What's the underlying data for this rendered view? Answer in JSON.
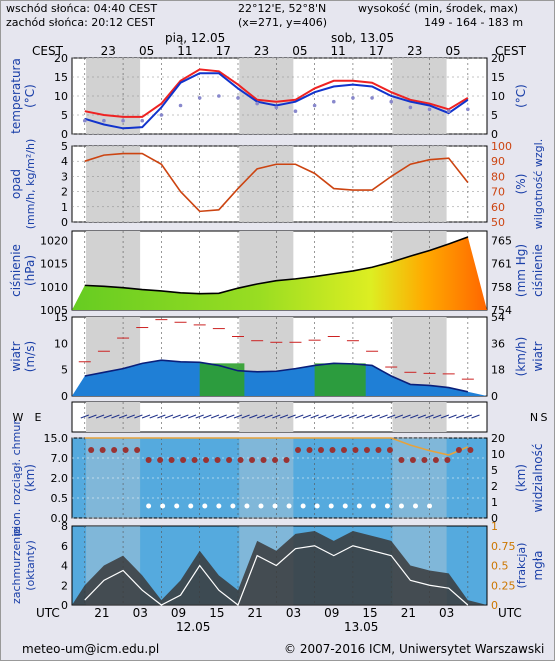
{
  "header": {
    "sunrise": "wschód słońca: 04:40 CEST",
    "sunset": "zachód słońca: 20:12 CEST",
    "coords": "22°12'E, 52°8'N",
    "grid": "(x=271, y=406)",
    "elev_title": "wysokość (min, środek, max)",
    "elev_values": "149 - 164 - 183 m",
    "tz_left": "CEST",
    "tz_right": "CEST",
    "day1_label": "pią, 12.05",
    "day2_label": "sob, 13.05",
    "top_hours": [
      "23",
      "05",
      "11",
      "17",
      "23",
      "05",
      "11",
      "17",
      "23",
      "05"
    ],
    "utc_label": "UTC",
    "utc_label_right": "UTC",
    "bottom_hours": [
      "21",
      "03",
      "09",
      "15",
      "21",
      "03",
      "09",
      "15",
      "21",
      "03"
    ],
    "bottom_date1": "12.05",
    "bottom_date2": "13.05"
  },
  "footer": {
    "email": "meteo-um@icm.edu.pl",
    "copyright": "© 2007-2016 ICM, Uniwersytet Warszawski"
  },
  "colors": {
    "night": "#d2d2d2",
    "day": "#ffffff",
    "temp_max": "#ee2222",
    "temp_mean": "#1133cc",
    "dewpoint": "#8888cc",
    "humidity": "#cc4411",
    "precip": "#cc2222",
    "pressure_line": "#000000",
    "wind_gust": "#cc2222",
    "visibility": "#e6a23c",
    "dots": "#993333",
    "sky": "#55aade"
  },
  "chart_data": [
    {
      "type": "line",
      "title": "",
      "ylabel": "temperatura (°C)",
      "ylabel_right": "(°C)",
      "ylim": [
        0,
        20
      ],
      "yticks": [
        "0",
        "5",
        "10",
        "15",
        "20"
      ],
      "x_hours_utc": [
        18,
        21,
        24,
        27,
        30,
        33,
        36,
        39,
        42,
        45,
        48,
        51,
        54,
        57,
        60,
        63,
        66,
        69,
        72,
        75,
        78
      ],
      "series": [
        {
          "values": [
            6,
            5,
            4.5,
            4.5,
            8,
            14,
            17,
            16.5,
            13,
            9,
            8.5,
            9,
            12,
            14,
            14,
            13.5,
            11,
            9,
            8,
            6.5,
            9.5
          ]
        },
        {
          "values": [
            4,
            2.5,
            1.5,
            1.8,
            7,
            13.5,
            16,
            16,
            12,
            8.5,
            7.5,
            8.5,
            11,
            12.5,
            13,
            12.5,
            10,
            8.5,
            7.5,
            5.5,
            9
          ]
        },
        {
          "values": [
            3.5,
            3.5,
            3.5,
            3.5,
            5,
            7.5,
            9.5,
            10,
            9.5,
            8,
            7,
            6,
            7.5,
            8.5,
            9.5,
            9.5,
            8.5,
            7,
            6.5,
            6,
            6.5
          ]
        }
      ]
    },
    {
      "type": "line",
      "title": "",
      "ylabel": "opad (mm/h, kg/m²/h)",
      "ylabel_right": "wilgotność wzgl. (%)",
      "ylim": [
        0,
        5
      ],
      "ylim_right": [
        50,
        100
      ],
      "yticks": [
        "0",
        "1",
        "2",
        "3",
        "4",
        "5"
      ],
      "yticks_right": [
        "50",
        "60",
        "70",
        "80",
        "90",
        "100"
      ],
      "x_hours_utc": [
        18,
        21,
        24,
        27,
        30,
        33,
        36,
        39,
        42,
        45,
        48,
        51,
        54,
        57,
        60,
        63,
        66,
        69,
        72,
        75,
        78
      ],
      "series": [
        {
          "values": [
            90,
            94,
            95,
            95,
            88,
            70,
            57,
            58,
            72,
            85,
            88,
            88,
            82,
            72,
            71,
            71,
            80,
            88,
            91,
            92,
            76
          ]
        }
      ]
    },
    {
      "type": "area",
      "title": "",
      "ylabel": "ciśnienie (hPa)",
      "ylabel_right": "ciśnienie (mm Hg)",
      "ylim": [
        1005,
        1022
      ],
      "yticks": [
        "1005",
        "1010",
        "1015",
        "1020"
      ],
      "yticks_right": [
        "754",
        "758",
        "761",
        "765"
      ],
      "x_hours_utc": [
        18,
        21,
        24,
        27,
        30,
        33,
        36,
        39,
        42,
        45,
        48,
        51,
        54,
        57,
        60,
        63,
        66,
        69,
        72,
        75,
        78
      ],
      "series": [
        {
          "values": [
            1010.3,
            1010.1,
            1009.8,
            1009.4,
            1009.1,
            1008.7,
            1008.5,
            1008.6,
            1009.7,
            1010.6,
            1011.3,
            1011.7,
            1012.2,
            1012.8,
            1013.4,
            1014.2,
            1015.3,
            1016.6,
            1017.8,
            1019.2,
            1020.7
          ]
        }
      ]
    },
    {
      "type": "area",
      "title": "",
      "ylabel": "wiatr (m/s)",
      "ylabel_right": "wiatr (km/h)",
      "ylim": [
        0,
        15
      ],
      "yticks": [
        "0",
        "5",
        "10",
        "15"
      ],
      "yticks_right": [
        "0",
        "18",
        "36",
        "54"
      ],
      "x_hours_utc": [
        18,
        21,
        24,
        27,
        30,
        33,
        36,
        39,
        42,
        45,
        48,
        51,
        54,
        57,
        60,
        63,
        66,
        69,
        72,
        75,
        78
      ],
      "series": [
        {
          "values": [
            3.8,
            4.5,
            5.2,
            6.2,
            6.8,
            6.5,
            6.4,
            5.8,
            4.8,
            4.6,
            4.7,
            5.2,
            5.8,
            6.2,
            6.1,
            5.8,
            3.8,
            2.2,
            2.0,
            1.6,
            0.8
          ]
        },
        {
          "values": [
            6.5,
            8.5,
            11.0,
            13.0,
            14.5,
            14.0,
            13.5,
            12.8,
            11.3,
            10.5,
            10.2,
            10.2,
            10.6,
            11.3,
            10.5,
            8.5,
            5.5,
            4.5,
            4.3,
            4.2,
            3.2
          ]
        }
      ]
    },
    {
      "type": "line",
      "title": "",
      "ylabel": "pion. rozciągł. chmur (km)",
      "ylabel_right": "widzialność (km)",
      "ylim": [
        0,
        15
      ],
      "yticks": [
        "0.0",
        "0.5",
        "2.0",
        "7.0",
        "15.0"
      ],
      "yticks_right": [
        "0",
        "1",
        "2",
        "5",
        "10",
        "20"
      ],
      "x_hours_utc": [
        18,
        21,
        24,
        27,
        30,
        33,
        36,
        39,
        42,
        45,
        48,
        51,
        54,
        57,
        60,
        63,
        66,
        69,
        72,
        75,
        78
      ],
      "series": [
        {
          "values": [
            20,
            20,
            20,
            20,
            20,
            20,
            20,
            20,
            20,
            20,
            20,
            20,
            20,
            20,
            20,
            20,
            20,
            15,
            12,
            10,
            14
          ]
        }
      ]
    },
    {
      "type": "area",
      "title": "",
      "ylabel": "zachmurzenie (oktanty)",
      "ylabel_right": "mgła (frakcja)",
      "ylim": [
        0,
        8
      ],
      "yticks": [
        "0",
        "2",
        "4",
        "6",
        "8"
      ],
      "yticks_right": [
        "0",
        "0.25",
        "0.5",
        "0.75",
        "1"
      ],
      "x_hours_utc": [
        18,
        21,
        24,
        27,
        30,
        33,
        36,
        39,
        42,
        45,
        48,
        51,
        54,
        57,
        60,
        63,
        66,
        69,
        72,
        75,
        78
      ],
      "series": [
        {
          "values": [
            2,
            4,
            5,
            3,
            0.5,
            2.5,
            5.5,
            3,
            1.5,
            6.5,
            5.5,
            7.2,
            7.5,
            6.5,
            7.5,
            7,
            6.5,
            4,
            3.5,
            3.2,
            0.5
          ]
        }
      ]
    }
  ]
}
